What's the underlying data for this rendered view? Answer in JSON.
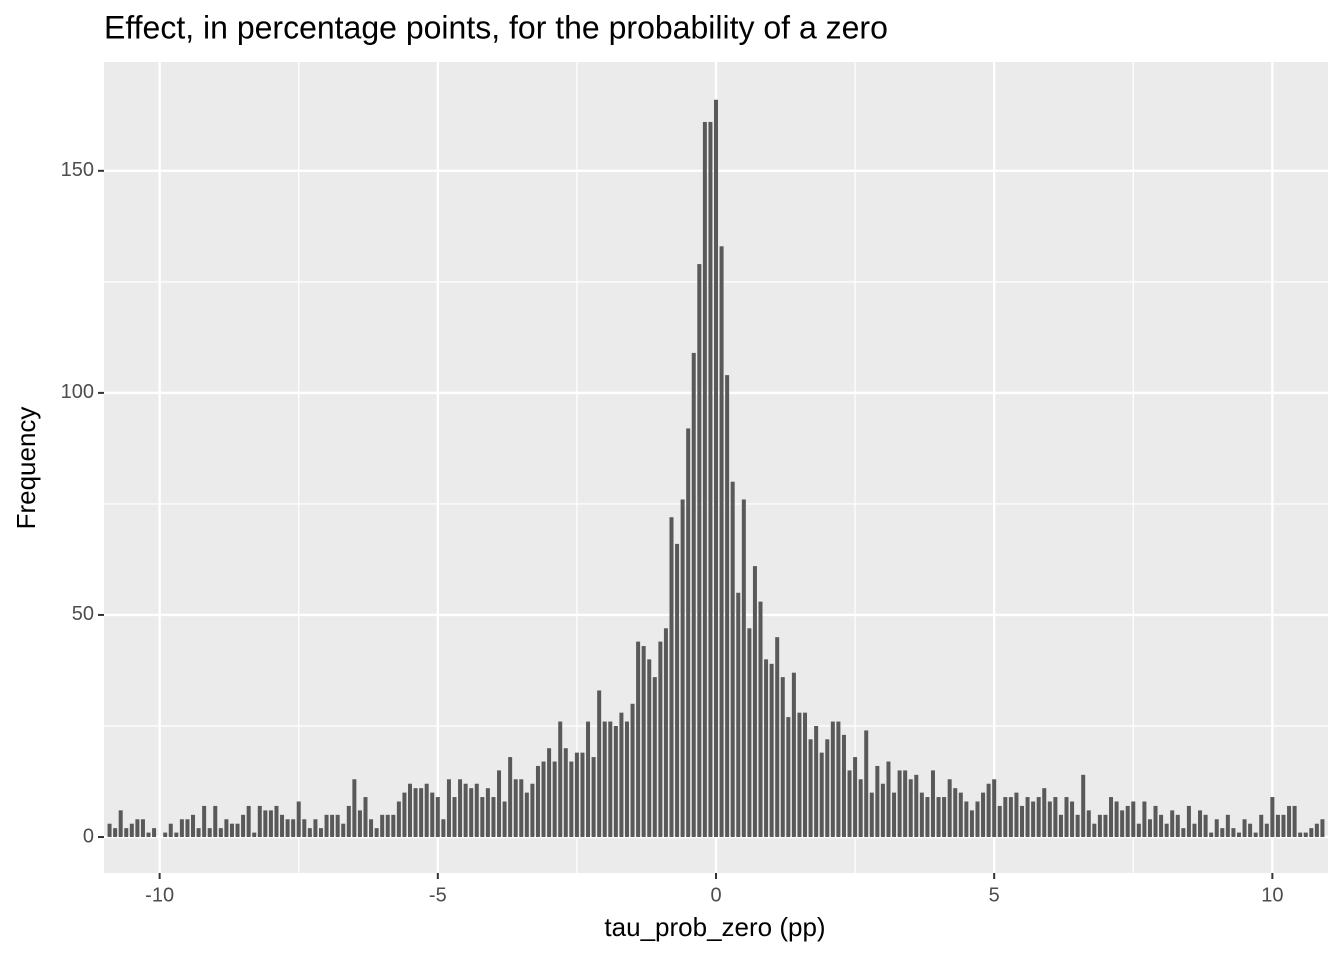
{
  "chart_data": {
    "type": "bar",
    "title": "Effect, in percentage points, for the probability of a zero",
    "x_label": "tau_prob_zero (pp)",
    "y_label": "Frequency",
    "color": "#595959",
    "xlim": [
      -11,
      11
    ],
    "ylim": [
      -8.1,
      174.5
    ],
    "xticks": [
      -10,
      -5,
      0,
      5,
      10
    ],
    "yticks": [
      0,
      50,
      100,
      150
    ],
    "grid": true,
    "x": [
      -10.9,
      -10.8,
      -10.7,
      -10.6,
      -10.5,
      -10.4,
      -10.3,
      -10.2,
      -10.1,
      -10.0,
      -9.9,
      -9.8,
      -9.7,
      -9.6,
      -9.5,
      -9.4,
      -9.3,
      -9.2,
      -9.1,
      -9.0,
      -8.9,
      -8.8,
      -8.7,
      -8.6,
      -8.5,
      -8.4,
      -8.3,
      -8.2,
      -8.1,
      -8.0,
      -7.9,
      -7.8,
      -7.7,
      -7.6,
      -7.5,
      -7.4,
      -7.3,
      -7.2,
      -7.1,
      -7.0,
      -6.9,
      -6.8,
      -6.7,
      -6.6,
      -6.5,
      -6.4,
      -6.3,
      -6.2,
      -6.1,
      -6.0,
      -5.9,
      -5.8,
      -5.7,
      -5.6,
      -5.5,
      -5.4,
      -5.3,
      -5.2,
      -5.1,
      -5.0,
      -4.9,
      -4.8,
      -4.7,
      -4.6,
      -4.5,
      -4.4,
      -4.3,
      -4.2,
      -4.1,
      -4.0,
      -3.9,
      -3.8,
      -3.7,
      -3.6,
      -3.5,
      -3.4,
      -3.3,
      -3.2,
      -3.1,
      -3.0,
      -2.9,
      -2.8,
      -2.7,
      -2.6,
      -2.5,
      -2.4,
      -2.3,
      -2.2,
      -2.1,
      -2.0,
      -1.9,
      -1.8,
      -1.7,
      -1.6,
      -1.5,
      -1.4,
      -1.3,
      -1.2,
      -1.1,
      -1.0,
      -0.9,
      -0.8,
      -0.7,
      -0.6,
      -0.5,
      -0.4,
      -0.3,
      -0.2,
      -0.1,
      0,
      0.1,
      0.2,
      0.3,
      0.4,
      0.5,
      0.6,
      0.7,
      0.8,
      0.9,
      1.0,
      1.1,
      1.2,
      1.3,
      1.4,
      1.5,
      1.6,
      1.7,
      1.8,
      1.9,
      2.0,
      2.1,
      2.2,
      2.3,
      2.4,
      2.5,
      2.6,
      2.7,
      2.8,
      2.9,
      3.0,
      3.1,
      3.2,
      3.3,
      3.4,
      3.5,
      3.6,
      3.7,
      3.8,
      3.9,
      4.0,
      4.1,
      4.2,
      4.3,
      4.4,
      4.5,
      4.6,
      4.7,
      4.8,
      4.9,
      5.0,
      5.1,
      5.2,
      5.3,
      5.4,
      5.5,
      5.6,
      5.7,
      5.8,
      5.9,
      6.0,
      6.1,
      6.2,
      6.3,
      6.4,
      6.5,
      6.6,
      6.7,
      6.8,
      6.9,
      7.0,
      7.1,
      7.2,
      7.3,
      7.4,
      7.5,
      7.6,
      7.7,
      7.8,
      7.9,
      8.0,
      8.1,
      8.2,
      8.3,
      8.4,
      8.5,
      8.6,
      8.7,
      8.8,
      8.9,
      9.0,
      9.1,
      9.2,
      9.3,
      9.4,
      9.5,
      9.6,
      9.7,
      9.8,
      9.9,
      10.0,
      10.1,
      10.2,
      10.3,
      10.4,
      10.5,
      10.6,
      10.7,
      10.8,
      10.9
    ],
    "values": [
      3,
      2,
      6,
      2,
      3,
      4,
      4,
      1,
      2,
      0,
      1,
      3,
      1,
      4,
      4,
      5,
      2,
      7,
      2,
      7,
      2,
      4,
      3,
      3,
      5,
      7,
      1,
      7,
      6,
      6,
      7,
      5,
      4,
      4,
      8,
      4,
      2,
      4,
      2,
      5,
      5,
      5,
      3,
      7,
      13,
      6,
      9,
      4,
      2,
      5,
      5,
      5,
      8,
      10,
      12,
      11,
      11,
      12,
      10,
      9,
      4,
      13,
      9,
      13,
      12,
      11,
      12,
      9,
      11,
      9,
      15,
      8,
      18,
      13,
      13,
      10,
      12,
      16,
      17,
      20,
      17,
      26,
      20,
      17,
      19,
      19,
      26,
      18,
      33,
      26,
      26,
      25,
      28,
      26,
      30,
      44,
      43,
      40,
      36,
      44,
      47,
      72,
      66,
      76,
      92,
      109,
      129,
      161,
      161,
      166,
      133,
      104,
      80,
      55,
      76,
      47,
      61,
      53,
      40,
      39,
      45,
      36,
      27,
      37,
      28,
      28,
      22,
      25,
      19,
      22,
      26,
      26,
      23,
      15,
      18,
      13,
      24,
      10,
      16,
      12,
      17,
      10,
      15,
      15,
      13,
      14,
      10,
      9,
      15,
      9,
      9,
      13,
      11,
      10,
      8,
      6,
      8,
      10,
      12,
      13,
      7,
      9,
      9,
      10,
      7,
      9,
      8,
      9,
      11,
      8,
      9,
      5,
      9,
      8,
      5,
      14,
      6,
      3,
      5,
      5,
      9,
      8,
      6,
      7,
      8,
      3,
      8,
      4,
      7,
      5,
      3,
      6,
      5,
      2,
      7,
      3,
      6,
      5,
      1,
      4,
      2,
      5,
      2,
      1,
      4,
      3,
      1,
      5,
      3,
      9,
      5,
      5,
      7,
      7,
      1,
      1,
      2,
      3,
      4
    ]
  }
}
